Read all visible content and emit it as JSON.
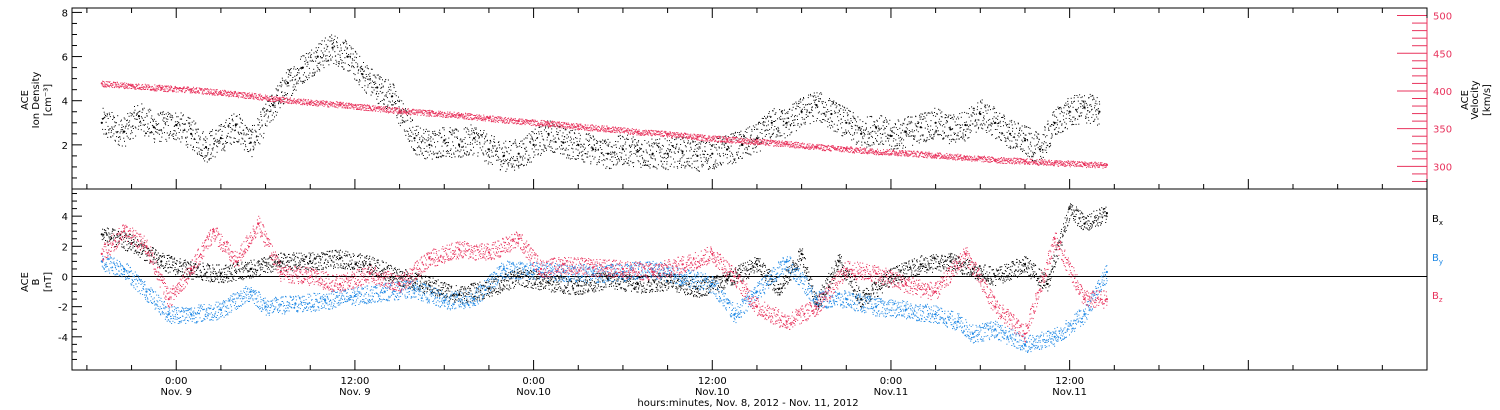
{
  "chart_data": [
    {
      "type": "scatter",
      "panel": "top",
      "ylabel_left": [
        "ACE",
        "Ion Density",
        "[cm⁻³]"
      ],
      "ylabel_right": [
        "ACE",
        "Velocity",
        "[km/s]"
      ],
      "left_yticks": [
        "2",
        "4",
        "6",
        "8"
      ],
      "left_ylim": [
        0,
        8.2
      ],
      "right_yticks": [
        "300",
        "350",
        "400",
        "450",
        "500"
      ],
      "right_ylim": [
        270,
        510
      ],
      "grid": false,
      "series": [
        {
          "axis": "left",
          "color": "#000000",
          "points": [
            [
              -5.0,
              3.0
            ],
            [
              -3.5,
              2.6
            ],
            [
              -2.5,
              3.3
            ],
            [
              -1.5,
              2.8
            ],
            [
              0.0,
              2.9
            ],
            [
              1.0,
              2.5
            ],
            [
              2.0,
              1.9
            ],
            [
              3.0,
              2.3
            ],
            [
              4.0,
              2.9
            ],
            [
              5.0,
              2.1
            ],
            [
              6.5,
              3.8
            ],
            [
              7.5,
              4.8
            ],
            [
              8.5,
              5.5
            ],
            [
              9.5,
              6.0
            ],
            [
              10.5,
              6.4
            ],
            [
              11.5,
              6.0
            ],
            [
              12.5,
              5.2
            ],
            [
              13.5,
              4.6
            ],
            [
              14.5,
              4.2
            ],
            [
              15.0,
              3.5
            ],
            [
              16.0,
              2.3
            ],
            [
              17.0,
              2.0
            ],
            [
              18.0,
              2.2
            ],
            [
              19.0,
              2.0
            ],
            [
              20.0,
              2.3
            ],
            [
              21.0,
              1.8
            ],
            [
              22.0,
              1.5
            ],
            [
              23.0,
              1.6
            ],
            [
              24.0,
              2.0
            ],
            [
              25.0,
              2.5
            ],
            [
              26.0,
              2.1
            ],
            [
              27.0,
              2.0
            ],
            [
              28.0,
              1.8
            ],
            [
              29.0,
              1.6
            ],
            [
              30.0,
              1.8
            ],
            [
              31.0,
              1.7
            ],
            [
              32.0,
              1.6
            ],
            [
              33.0,
              1.6
            ],
            [
              34.0,
              1.7
            ],
            [
              35.0,
              1.5
            ],
            [
              36.0,
              1.6
            ],
            [
              37.0,
              1.8
            ],
            [
              38.0,
              2.0
            ],
            [
              39.0,
              2.3
            ],
            [
              40.0,
              3.0
            ],
            [
              41.0,
              3.0
            ],
            [
              42.0,
              3.5
            ],
            [
              43.0,
              3.8
            ],
            [
              44.0,
              3.4
            ],
            [
              45.0,
              3.0
            ],
            [
              46.0,
              2.5
            ],
            [
              47.0,
              2.8
            ],
            [
              48.0,
              2.4
            ],
            [
              49.0,
              2.6
            ],
            [
              50.0,
              2.8
            ],
            [
              51.0,
              3.0
            ],
            [
              52.0,
              2.7
            ],
            [
              53.0,
              2.9
            ],
            [
              54.0,
              3.4
            ],
            [
              55.0,
              3.0
            ],
            [
              56.0,
              2.5
            ],
            [
              57.0,
              2.2
            ],
            [
              58.0,
              1.8
            ],
            [
              59.0,
              3.0
            ],
            [
              60.0,
              3.5
            ],
            [
              61.0,
              3.7
            ],
            [
              62.0,
              3.5
            ]
          ]
        },
        {
          "axis": "right",
          "color": "#e8335d",
          "points": [
            [
              -5.0,
              410
            ],
            [
              -3.0,
              407
            ],
            [
              -1.0,
              404
            ],
            [
              1.0,
              402
            ],
            [
              3.0,
              398
            ],
            [
              5.0,
              394
            ],
            [
              7.0,
              389
            ],
            [
              9.0,
              385
            ],
            [
              11.0,
              382
            ],
            [
              13.0,
              378
            ],
            [
              15.0,
              374
            ],
            [
              17.0,
              371
            ],
            [
              19.0,
              368
            ],
            [
              21.0,
              364
            ],
            [
              23.0,
              360
            ],
            [
              25.0,
              357
            ],
            [
              27.0,
              353
            ],
            [
              29.0,
              350
            ],
            [
              31.0,
              346
            ],
            [
              33.0,
              343
            ],
            [
              35.0,
              339
            ],
            [
              37.0,
              336
            ],
            [
              39.0,
              333
            ],
            [
              41.0,
              330
            ],
            [
              43.0,
              326
            ],
            [
              45.0,
              323
            ],
            [
              47.0,
              320
            ],
            [
              49.0,
              318
            ],
            [
              51.0,
              315
            ],
            [
              53.0,
              312
            ],
            [
              55.0,
              309
            ],
            [
              57.0,
              307
            ],
            [
              59.0,
              305
            ],
            [
              61.0,
              303
            ],
            [
              62.5,
              302
            ]
          ]
        }
      ]
    },
    {
      "type": "scatter",
      "panel": "bottom",
      "ylabel": [
        "ACE",
        "B",
        "[nT]"
      ],
      "yticks": [
        "-4",
        "-2",
        "0",
        "2",
        "4"
      ],
      "ylim": [
        -6.2,
        5.8
      ],
      "zero_line": true,
      "grid": false,
      "series": [
        {
          "name": "B",
          "sub": "x",
          "color": "#000000",
          "points": [
            [
              -5.0,
              2.8
            ],
            [
              -3.0,
              2.2
            ],
            [
              -1.0,
              1.0
            ],
            [
              1.0,
              0.4
            ],
            [
              3.0,
              0.2
            ],
            [
              5.0,
              0.5
            ],
            [
              7.0,
              1.0
            ],
            [
              9.0,
              1.0
            ],
            [
              11.0,
              1.2
            ],
            [
              13.0,
              0.8
            ],
            [
              15.0,
              0.0
            ],
            [
              17.0,
              -0.6
            ],
            [
              19.0,
              -1.2
            ],
            [
              21.0,
              -0.8
            ],
            [
              23.0,
              0.0
            ],
            [
              25.0,
              -0.4
            ],
            [
              27.0,
              -0.6
            ],
            [
              29.0,
              -0.2
            ],
            [
              31.0,
              -0.5
            ],
            [
              33.0,
              -0.3
            ],
            [
              35.0,
              -0.8
            ],
            [
              37.0,
              -0.2
            ],
            [
              39.0,
              0.8
            ],
            [
              40.5,
              -0.8
            ],
            [
              42.0,
              1.5
            ],
            [
              43.0,
              -1.8
            ],
            [
              44.5,
              1.0
            ],
            [
              46.0,
              -1.5
            ],
            [
              48.0,
              0.0
            ],
            [
              50.0,
              0.8
            ],
            [
              52.0,
              1.0
            ],
            [
              53.5,
              0.5
            ],
            [
              55.0,
              0.0
            ],
            [
              57.0,
              0.8
            ],
            [
              58.5,
              -0.5
            ],
            [
              60.0,
              4.5
            ],
            [
              61.0,
              3.5
            ],
            [
              62.5,
              4.2
            ]
          ]
        },
        {
          "name": "B",
          "sub": "y",
          "color": "#1e88e5",
          "points": [
            [
              -5.0,
              1.0
            ],
            [
              -3.5,
              0.5
            ],
            [
              -2.0,
              -1.0
            ],
            [
              -0.5,
              -2.5
            ],
            [
              1.0,
              -2.5
            ],
            [
              3.0,
              -2.2
            ],
            [
              5.0,
              -1.0
            ],
            [
              6.0,
              -2.0
            ],
            [
              8.0,
              -1.8
            ],
            [
              10.0,
              -1.6
            ],
            [
              12.0,
              -1.3
            ],
            [
              14.0,
              -1.0
            ],
            [
              16.0,
              -0.8
            ],
            [
              18.0,
              -1.6
            ],
            [
              20.0,
              -1.5
            ],
            [
              22.0,
              0.5
            ],
            [
              24.0,
              0.4
            ],
            [
              26.0,
              0.3
            ],
            [
              28.0,
              0.2
            ],
            [
              30.0,
              0.3
            ],
            [
              32.0,
              0.5
            ],
            [
              34.0,
              0.0
            ],
            [
              36.0,
              -0.5
            ],
            [
              37.5,
              -2.5
            ],
            [
              39.0,
              -1.0
            ],
            [
              41.0,
              1.0
            ],
            [
              43.0,
              -1.5
            ],
            [
              45.0,
              -1.5
            ],
            [
              47.0,
              -2.0
            ],
            [
              49.0,
              -2.2
            ],
            [
              51.0,
              -2.5
            ],
            [
              52.5,
              -3.0
            ],
            [
              53.5,
              -3.8
            ],
            [
              55.0,
              -3.5
            ],
            [
              57.0,
              -4.5
            ],
            [
              59.0,
              -4.0
            ],
            [
              61.0,
              -2.5
            ],
            [
              62.5,
              0.3
            ]
          ]
        },
        {
          "name": "B",
          "sub": "z",
          "color": "#e8335d",
          "points": [
            [
              -5.0,
              1.5
            ],
            [
              -3.5,
              3.0
            ],
            [
              -2.0,
              2.0
            ],
            [
              -0.5,
              -1.5
            ],
            [
              1.0,
              0.5
            ],
            [
              2.5,
              3.0
            ],
            [
              4.0,
              1.0
            ],
            [
              5.5,
              3.5
            ],
            [
              7.0,
              0.3
            ],
            [
              9.0,
              0.0
            ],
            [
              11.0,
              -0.5
            ],
            [
              13.0,
              0.2
            ],
            [
              15.0,
              -0.5
            ],
            [
              17.0,
              1.2
            ],
            [
              19.0,
              1.8
            ],
            [
              21.0,
              1.6
            ],
            [
              23.0,
              2.5
            ],
            [
              24.5,
              0.5
            ],
            [
              26.0,
              0.8
            ],
            [
              28.0,
              0.6
            ],
            [
              30.0,
              0.5
            ],
            [
              32.0,
              0.3
            ],
            [
              34.0,
              0.8
            ],
            [
              36.0,
              1.5
            ],
            [
              37.5,
              0.0
            ],
            [
              39.0,
              -2.0
            ],
            [
              41.0,
              -3.0
            ],
            [
              43.0,
              -2.0
            ],
            [
              45.0,
              0.5
            ],
            [
              47.0,
              0.2
            ],
            [
              49.0,
              -0.5
            ],
            [
              51.0,
              -1.0
            ],
            [
              53.0,
              1.5
            ],
            [
              55.0,
              -2.0
            ],
            [
              57.0,
              -3.8
            ],
            [
              59.0,
              2.5
            ],
            [
              61.0,
              -1.5
            ],
            [
              62.5,
              -1.5
            ]
          ]
        }
      ]
    }
  ],
  "xaxis": {
    "range_hours": [
      -7.0,
      84.0
    ],
    "ticks": [
      {
        "hour": 0,
        "time": "0:00",
        "date": "Nov. 9"
      },
      {
        "hour": 12,
        "time": "12:00",
        "date": "Nov. 9"
      },
      {
        "hour": 24,
        "time": "0:00",
        "date": "Nov.10"
      },
      {
        "hour": 36,
        "time": "12:00",
        "date": "Nov.10"
      },
      {
        "hour": 48,
        "time": "0:00",
        "date": "Nov.11"
      },
      {
        "hour": 60,
        "time": "12:00",
        "date": "Nov.11"
      }
    ],
    "xlabel": "hours:minutes, Nov.  8, 2012 - Nov. 11, 2012"
  },
  "colors": {
    "black": "#000000",
    "pink": "#e8335d",
    "blue": "#1e88e5"
  }
}
